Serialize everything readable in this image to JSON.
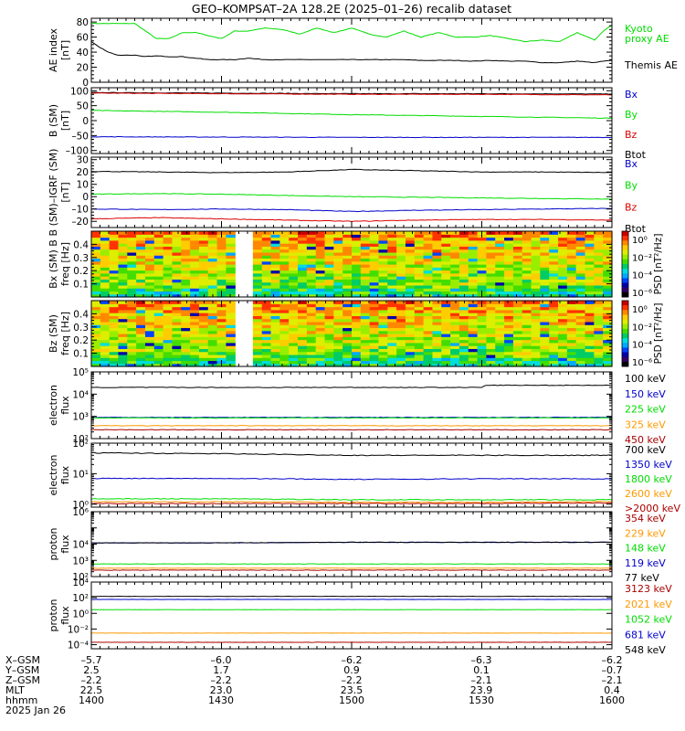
{
  "title": "GEO–KOMPSAT–2A 128.2E (2025–01–26) recalib dataset",
  "footer": {
    "rows": [
      {
        "label": "X–GSM",
        "values": [
          "–5.7",
          "–6.0",
          "–6.2",
          "–6.3",
          "–6.2"
        ]
      },
      {
        "label": "Y–GSM",
        "values": [
          "2.5",
          "1.7",
          "0.9",
          "0.1",
          "–0.7"
        ]
      },
      {
        "label": "Z–GSM",
        "values": [
          "–2.2",
          "–2.2",
          "–2.2",
          "–2.1",
          "–2.1"
        ]
      },
      {
        "label": "MLT",
        "values": [
          "22.5",
          "23.0",
          "23.5",
          "23.9",
          "0.4"
        ]
      },
      {
        "label": "hhmm",
        "values": [
          "1400",
          "1430",
          "1500",
          "1530",
          "1600"
        ]
      }
    ],
    "date": "2025 Jan 26"
  },
  "chart_data": [
    {
      "type": "line",
      "id": "ae",
      "ylabel": [
        "AE index",
        "[nT]"
      ],
      "ylim": [
        0,
        85
      ],
      "ticks": [
        0,
        20,
        40,
        60,
        80
      ],
      "tick_labels": [
        "0",
        "20",
        "40",
        "60",
        "80"
      ],
      "x": [
        0,
        2,
        4,
        6,
        8,
        10,
        12,
        15,
        18,
        21,
        24,
        27,
        30,
        33,
        36,
        40,
        44,
        48,
        52,
        56,
        60,
        64,
        68,
        72,
        76,
        80,
        84,
        88,
        92,
        96,
        100,
        104,
        108,
        112,
        116,
        118,
        120
      ],
      "series": [
        {
          "name": "Kyoto proxy AE",
          "color": "#00dd00",
          "values": [
            78,
            78,
            78,
            78,
            78,
            78,
            70,
            58,
            58,
            66,
            66,
            62,
            58,
            68,
            68,
            72,
            70,
            64,
            72,
            66,
            72,
            64,
            60,
            68,
            60,
            66,
            60,
            60,
            62,
            58,
            54,
            56,
            54,
            66,
            56,
            68,
            76
          ]
        },
        {
          "name": "Themis AE",
          "color": "#000000",
          "values": [
            54,
            46,
            40,
            36,
            36,
            36,
            34,
            35,
            34,
            34,
            32,
            30,
            30,
            30,
            32,
            30,
            30,
            30,
            30,
            30,
            30,
            30,
            30,
            30,
            29,
            29,
            29,
            28,
            29,
            28,
            28,
            26,
            26,
            28,
            26,
            28,
            29
          ]
        }
      ],
      "legend_labels": [
        {
          "text": "Kyoto",
          "color": "#00dd00"
        },
        {
          "text": "proxy AE",
          "color": "#00dd00"
        },
        {
          "text": "Themis AE",
          "color": "#000000"
        }
      ]
    },
    {
      "type": "line",
      "id": "bsm",
      "ylabel": [
        "B (SM)",
        "[nT]"
      ],
      "ylim": [
        -110,
        110
      ],
      "ticks": [
        -100,
        -50,
        0,
        50,
        100
      ],
      "tick_labels": [
        "–100",
        "–50",
        "0",
        "50",
        "100"
      ],
      "x": [
        0,
        30,
        60,
        90,
        120
      ],
      "series": [
        {
          "name": "Btot",
          "color": "#000000",
          "values": [
            94,
            92,
            90,
            90,
            89
          ]
        },
        {
          "name": "Bz",
          "color": "#dd0000",
          "values": [
            92,
            90,
            88,
            88,
            86
          ]
        },
        {
          "name": "By",
          "color": "#00dd00",
          "values": [
            34,
            28,
            20,
            14,
            8
          ]
        },
        {
          "name": "Bx",
          "color": "#0000cc",
          "values": [
            -54,
            -55,
            -56,
            -56,
            -56
          ]
        }
      ],
      "legend_labels": [
        {
          "text": "Bx",
          "color": "#0000cc"
        },
        {
          "text": "By",
          "color": "#00dd00"
        },
        {
          "text": "Bz",
          "color": "#dd0000"
        },
        {
          "text": "Btot",
          "color": "#000000"
        }
      ]
    },
    {
      "type": "line",
      "id": "bres",
      "ylabel": [
        "B (SM)–IGRF (SM)",
        "[nT]"
      ],
      "ylim": [
        -25,
        32
      ],
      "ticks": [
        -20,
        -10,
        0,
        10,
        20,
        30
      ],
      "tick_labels": [
        "–20",
        "–10",
        "0",
        "10",
        "20",
        "30"
      ],
      "x": [
        0,
        15,
        30,
        45,
        60,
        75,
        90,
        105,
        120
      ],
      "series": [
        {
          "name": "Btot",
          "color": "#000000",
          "values": [
            20.5,
            20,
            19.5,
            20,
            22,
            21,
            20,
            20,
            19.5
          ]
        },
        {
          "name": "By",
          "color": "#00dd00",
          "values": [
            2,
            2.5,
            2,
            1,
            0,
            -0.5,
            -1,
            -1.5,
            -2
          ]
        },
        {
          "name": "Bx",
          "color": "#0000cc",
          "values": [
            -10,
            -10.5,
            -10,
            -10.5,
            -12,
            -11,
            -10.5,
            -10,
            -9.5
          ]
        },
        {
          "name": "Bz",
          "color": "#dd0000",
          "values": [
            -18,
            -17,
            -18,
            -19,
            -20,
            -19,
            -18.5,
            -18.5,
            -19
          ]
        }
      ],
      "legend_labels": [
        {
          "text": "Bx",
          "color": "#0000cc"
        },
        {
          "text": "By",
          "color": "#00dd00"
        },
        {
          "text": "Bz",
          "color": "#dd0000"
        },
        {
          "text": "Btot",
          "color": "#000000"
        }
      ]
    },
    {
      "type": "heatmap",
      "id": "bxpsd",
      "ylabel": [
        "Bx (SM) B",
        "freq [Hz]"
      ],
      "ylim": [
        0,
        0.5
      ],
      "ticks": [
        0.1,
        0.2,
        0.3,
        0.4
      ],
      "tick_labels": [
        "0.1",
        "0.2",
        "0.3",
        "0.4"
      ],
      "gap": [
        33.5,
        36.5
      ],
      "colorbar": {
        "label": "PSD [nT²/Hz]",
        "ticks": [
          "10⁰",
          "10⁻²",
          "10⁻⁴",
          "10⁻⁶"
        ]
      }
    },
    {
      "type": "heatmap",
      "id": "bzpsd",
      "ylabel": [
        "Bz (SM)",
        "freq [Hz]"
      ],
      "ylim": [
        0,
        0.5
      ],
      "ticks": [
        0.1,
        0.2,
        0.3,
        0.4
      ],
      "tick_labels": [
        "0.1",
        "0.2",
        "0.3",
        "0.4"
      ],
      "gap": [
        33.5,
        36.5
      ],
      "colorbar": {
        "label": "PSD [nT²/Hz]",
        "ticks": [
          "10⁰",
          "10⁻²",
          "10⁻⁴",
          "10⁻⁶"
        ]
      }
    },
    {
      "type": "line",
      "id": "elec_lo",
      "log": true,
      "ylabel": [
        "electron",
        "flux"
      ],
      "ylim": [
        100,
        100000
      ],
      "ticks": [
        100,
        1000,
        10000,
        100000
      ],
      "tick_labels": [
        "10²",
        "10³",
        "10⁴",
        "10⁵"
      ],
      "x": [
        0,
        60,
        90,
        91,
        120
      ],
      "series": [
        {
          "name": "100 keV",
          "color": "#000000",
          "values": [
            20000,
            20000,
            20000,
            25000,
            25000
          ]
        },
        {
          "name": "150 keV",
          "color": "#0000cc",
          "values": [
            900,
            900,
            900,
            900,
            900
          ]
        },
        {
          "name": "225 keV",
          "color": "#00dd00",
          "values": [
            850,
            850,
            850,
            850,
            850
          ]
        },
        {
          "name": "325 keV",
          "color": "#ff9900",
          "values": [
            380,
            380,
            380,
            380,
            380
          ]
        },
        {
          "name": "450 keV",
          "color": "#aa0000",
          "values": [
            250,
            250,
            250,
            250,
            250
          ]
        }
      ],
      "legend_labels": [
        {
          "text": "100 keV",
          "color": "#000000"
        },
        {
          "text": "150 keV",
          "color": "#0000cc"
        },
        {
          "text": "225 keV",
          "color": "#00dd00"
        },
        {
          "text": "325 keV",
          "color": "#ff9900"
        },
        {
          "text": "450 keV",
          "color": "#aa0000"
        }
      ]
    },
    {
      "type": "line",
      "id": "elec_hi",
      "log": true,
      "ylabel": [
        "electron",
        "flux"
      ],
      "ylim": [
        0.8,
        100
      ],
      "ticks": [
        1,
        10,
        100
      ],
      "tick_labels": [
        "10⁰",
        "10¹",
        "10²"
      ],
      "x": [
        0,
        30,
        60,
        90,
        120
      ],
      "series": [
        {
          "name": "700 keV",
          "color": "#000000",
          "values": [
            48,
            45,
            40,
            40,
            40
          ]
        },
        {
          "name": "1350 keV",
          "color": "#0000cc",
          "values": [
            7,
            7,
            6.5,
            6.8,
            6.8
          ]
        },
        {
          "name": "1800 keV",
          "color": "#00dd00",
          "values": [
            1.5,
            1.5,
            1.4,
            1.4,
            1.4
          ]
        },
        {
          "name": "2600 keV",
          "color": "#ff9900",
          "values": [
            1.2,
            1.2,
            1.15,
            1.15,
            1.2
          ]
        },
        {
          "name": ">2000 keV",
          "color": "#aa0000",
          "values": [
            1.05,
            1.05,
            1.05,
            1.05,
            1.1
          ]
        }
      ],
      "legend_labels": [
        {
          "text": "700 keV",
          "color": "#000000"
        },
        {
          "text": "1350 keV",
          "color": "#0000cc"
        },
        {
          "text": "1800 keV",
          "color": "#00dd00"
        },
        {
          "text": "2600 keV",
          "color": "#ff9900"
        },
        {
          "text": ">2000 keV",
          "color": "#aa0000"
        }
      ]
    },
    {
      "type": "line",
      "id": "prot_lo",
      "log": true,
      "ylabel": [
        "proton",
        "flux"
      ],
      "ylim": [
        100,
        1000000
      ],
      "ticks": [
        100,
        1000,
        10000,
        100000,
        1000000
      ],
      "tick_labels": [
        "10²",
        "10³",
        "10⁴",
        "",
        "10⁶"
      ],
      "x": [
        0,
        30,
        60,
        90,
        120
      ],
      "series": [
        {
          "name": "354 keV",
          "color": "#aa0000",
          "values": [
            250,
            250,
            250,
            250,
            250
          ]
        },
        {
          "name": "229 keV",
          "color": "#ff9900",
          "values": [
            330,
            330,
            330,
            330,
            330
          ]
        },
        {
          "name": "148 keV",
          "color": "#00dd00",
          "values": [
            600,
            600,
            600,
            600,
            600
          ]
        },
        {
          "name": "119 keV",
          "color": "#0000cc",
          "values": [
            12000,
            12000,
            13000,
            13000,
            13000
          ]
        },
        {
          "name": "77 keV",
          "color": "#000000",
          "values": [
            12000,
            12000,
            13000,
            13000,
            13000
          ]
        }
      ],
      "legend_labels": [
        {
          "text": "354 keV",
          "color": "#aa0000"
        },
        {
          "text": "229 keV",
          "color": "#ff9900"
        },
        {
          "text": "148 keV",
          "color": "#00dd00"
        },
        {
          "text": "119 keV",
          "color": "#0000cc"
        },
        {
          "text": "77 keV",
          "color": "#000000"
        }
      ]
    },
    {
      "type": "line",
      "id": "prot_hi",
      "log": true,
      "ylabel": [
        "proton",
        "flux"
      ],
      "ylim": [
        3e-05,
        10000
      ],
      "ticks": [
        0.0001,
        0.01,
        1,
        100,
        10000
      ],
      "tick_labels": [
        "10⁻⁴",
        "10⁻²",
        "10⁰",
        "10²",
        "10⁴"
      ],
      "x": [
        0,
        30,
        60,
        90,
        120
      ],
      "series": [
        {
          "name": "3123 keV",
          "color": "#aa0000",
          "values": [
            0.0002,
            0.0002,
            0.0002,
            0.0002,
            0.0002
          ]
        },
        {
          "name": "2021 keV",
          "color": "#ff9900",
          "values": [
            0.003,
            0.003,
            0.003,
            0.003,
            0.003
          ]
        },
        {
          "name": "1052 keV",
          "color": "#00dd00",
          "values": [
            3,
            3,
            3,
            3,
            3
          ]
        },
        {
          "name": "681 keV",
          "color": "#0000cc",
          "values": [
            60,
            60,
            60,
            60,
            60
          ]
        },
        {
          "name": "548 keV",
          "color": "#000000",
          "values": [
            150,
            150,
            150,
            150,
            150
          ]
        }
      ],
      "legend_labels": [
        {
          "text": "3123 keV",
          "color": "#aa0000"
        },
        {
          "text": "2021 keV",
          "color": "#ff9900"
        },
        {
          "text": "1052 keV",
          "color": "#00dd00"
        },
        {
          "text": "681 keV",
          "color": "#0000cc"
        },
        {
          "text": "548 keV",
          "color": "#000000"
        }
      ]
    }
  ]
}
